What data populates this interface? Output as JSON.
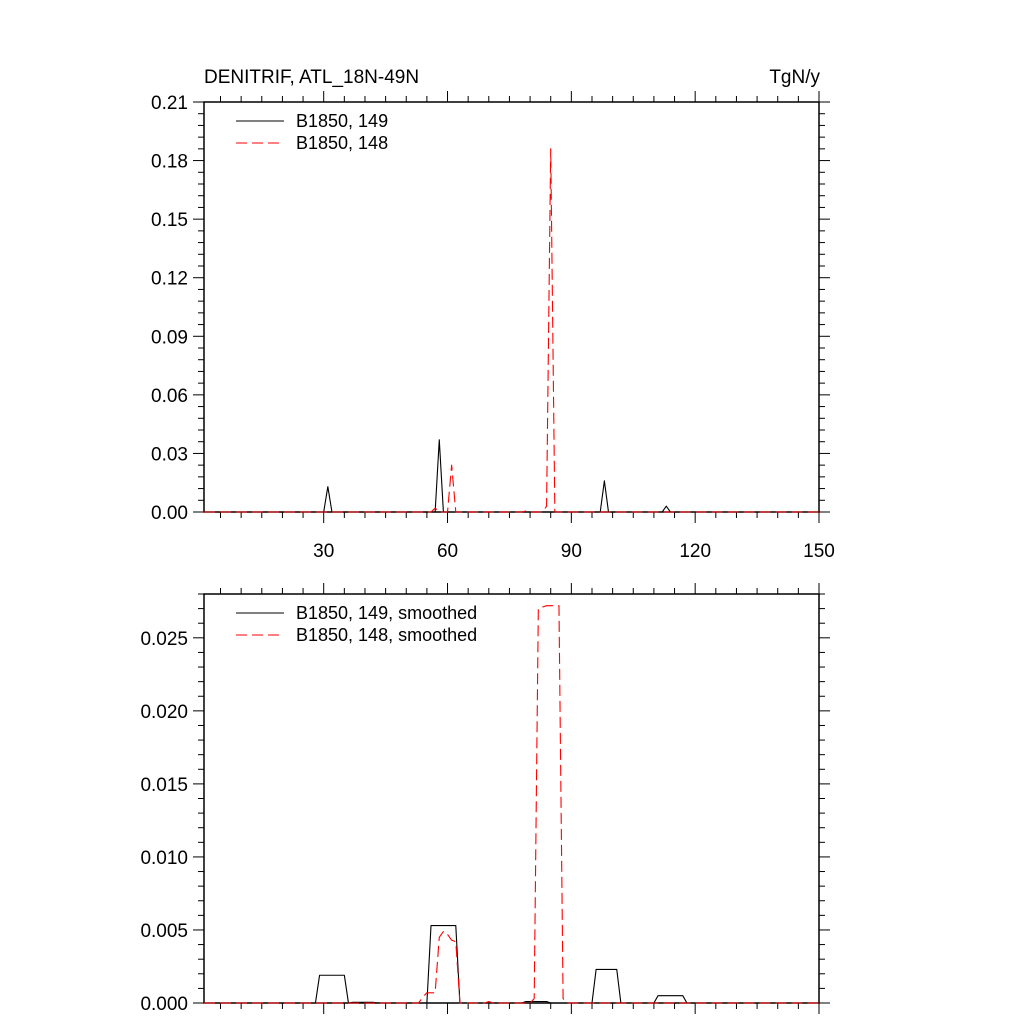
{
  "header": {
    "title": "DENITRIF, ATL_18N-49N",
    "units": "TgN/y"
  },
  "chart_data": [
    {
      "type": "line",
      "title": "DENITRIF, ATL_18N-49N",
      "units": "TgN/y",
      "xlim": [
        1,
        150
      ],
      "ylim": [
        0,
        0.21
      ],
      "x_ticks": [
        30,
        60,
        90,
        120,
        150
      ],
      "x_tick_labels": [
        "30",
        "60",
        "90",
        "120",
        "150"
      ],
      "y_ticks": [
        0,
        0.03,
        0.06,
        0.09,
        0.12,
        0.15,
        0.18,
        0.21
      ],
      "y_tick_labels": [
        "0.00",
        "0.03",
        "0.06",
        "0.09",
        "0.12",
        "0.15",
        "0.18",
        "0.21"
      ],
      "legend": "top-left",
      "series": [
        {
          "name": "B1850, 149",
          "color": "#000000",
          "dash": "solid",
          "points": [
            [
              1,
              0
            ],
            [
              30,
              0
            ],
            [
              31,
              0.013
            ],
            [
              32,
              0
            ],
            [
              57,
              0
            ],
            [
              58,
              0.037
            ],
            [
              59,
              0
            ],
            [
              97,
              0
            ],
            [
              98,
              0.016
            ],
            [
              99,
              0
            ],
            [
              112,
              0
            ],
            [
              113,
              0.003
            ],
            [
              114,
              0
            ],
            [
              150,
              0
            ]
          ]
        },
        {
          "name": "B1850, 148",
          "color": "#ff0000",
          "dash": "dashed",
          "points": [
            [
              1,
              0
            ],
            [
              56,
              0
            ],
            [
              57,
              0.002
            ],
            [
              58,
              0
            ],
            [
              60,
              0
            ],
            [
              61,
              0.024
            ],
            [
              62,
              0
            ],
            [
              78,
              0
            ],
            [
              79,
              0.0005
            ],
            [
              80,
              0
            ],
            [
              83,
              0
            ],
            [
              84,
              0.003
            ],
            [
              85,
              0.186
            ],
            [
              86,
              0
            ],
            [
              150,
              0
            ]
          ]
        }
      ]
    },
    {
      "type": "line",
      "xlim": [
        1,
        150
      ],
      "ylim": [
        0,
        0.028
      ],
      "x_ticks": [
        30,
        60,
        90,
        120,
        150
      ],
      "y_ticks": [
        0,
        0.005,
        0.01,
        0.015,
        0.02,
        0.025
      ],
      "y_tick_labels": [
        "0.000",
        "0.005",
        "0.010",
        "0.015",
        "0.020",
        "0.025"
      ],
      "legend": "top-left",
      "series": [
        {
          "name": "B1850, 149, smoothed",
          "color": "#000000",
          "dash": "solid",
          "points": [
            [
              1,
              0
            ],
            [
              28,
              0
            ],
            [
              29,
              0.0019
            ],
            [
              35,
              0.0019
            ],
            [
              36,
              0
            ],
            [
              37,
              5e-05
            ],
            [
              42,
              5e-05
            ],
            [
              43,
              0
            ],
            [
              55,
              0
            ],
            [
              56,
              0.0053
            ],
            [
              62,
              0.0053
            ],
            [
              63,
              0
            ],
            [
              78,
              0
            ],
            [
              79,
              0.0001
            ],
            [
              84,
              0.0001
            ],
            [
              85,
              0
            ],
            [
              95,
              0
            ],
            [
              96,
              0.0023
            ],
            [
              101,
              0.0023
            ],
            [
              102,
              0
            ],
            [
              110,
              0
            ],
            [
              111,
              0.0005
            ],
            [
              117,
              0.0005
            ],
            [
              118,
              0
            ],
            [
              150,
              0
            ]
          ]
        },
        {
          "name": "B1850, 148, smoothed",
          "color": "#ff0000",
          "dash": "dashed",
          "points": [
            [
              1,
              0
            ],
            [
              53,
              0
            ],
            [
              54,
              0.0004
            ],
            [
              55,
              0.0007
            ],
            [
              57,
              0.0007
            ],
            [
              58,
              0.0045
            ],
            [
              59,
              0.0049
            ],
            [
              60,
              0.0047
            ],
            [
              61,
              0.0043
            ],
            [
              62,
              0.0042
            ],
            [
              63,
              0
            ],
            [
              69,
              0
            ],
            [
              70,
              0.0001
            ],
            [
              71,
              0
            ],
            [
              80,
              0
            ],
            [
              81,
              0.0003
            ],
            [
              82,
              0.027
            ],
            [
              84,
              0.0272
            ],
            [
              87,
              0.0272
            ],
            [
              88,
              0.0003
            ],
            [
              89,
              0
            ],
            [
              150,
              0
            ]
          ]
        }
      ]
    }
  ]
}
